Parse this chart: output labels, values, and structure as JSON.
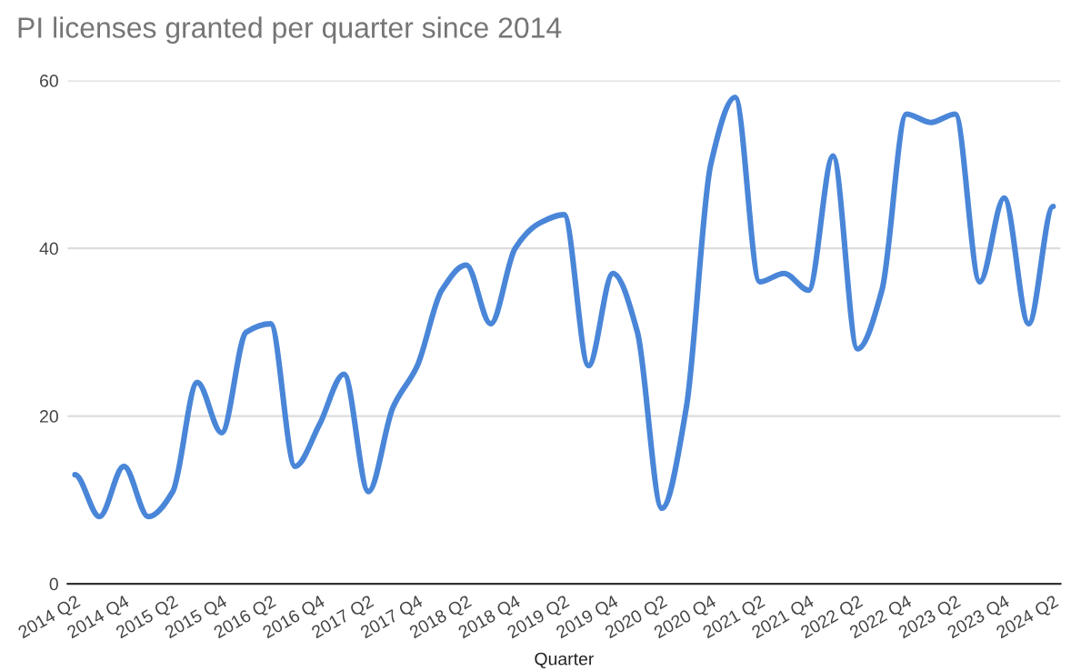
{
  "chart_data": {
    "type": "line",
    "title": "PI licenses granted per quarter since 2014",
    "xlabel": "Quarter",
    "categories": [
      "2014 Q2",
      null,
      "2014 Q4",
      null,
      "2015 Q2",
      null,
      "2015 Q4",
      null,
      "2016 Q2",
      null,
      "2016 Q4",
      null,
      "2017 Q2",
      null,
      "2017 Q4",
      null,
      "2018 Q2",
      null,
      "2018 Q4",
      null,
      "2019 Q2",
      null,
      "2019 Q4",
      null,
      "2020 Q2",
      null,
      "2020 Q4",
      null,
      "2021 Q2",
      null,
      "2021 Q4",
      null,
      "2022 Q2",
      null,
      "2022 Q4",
      null,
      "2023 Q2",
      null,
      "2023 Q4",
      null,
      "2024 Q2"
    ],
    "series": [
      {
        "color": "#4a86d8",
        "values": [
          13,
          8,
          14,
          8,
          11,
          24,
          18,
          30,
          31,
          14,
          19,
          25,
          11,
          21,
          26,
          35,
          38,
          31,
          40,
          43,
          44,
          26,
          37,
          30,
          9,
          21,
          50,
          58,
          36,
          37,
          35,
          51,
          28,
          35,
          56,
          55,
          56,
          36,
          46,
          31,
          45
        ]
      }
    ],
    "ylim": [
      0,
      60
    ],
    "yticks": [
      0,
      20,
      40,
      60
    ],
    "grid": "y",
    "legend": false
  }
}
